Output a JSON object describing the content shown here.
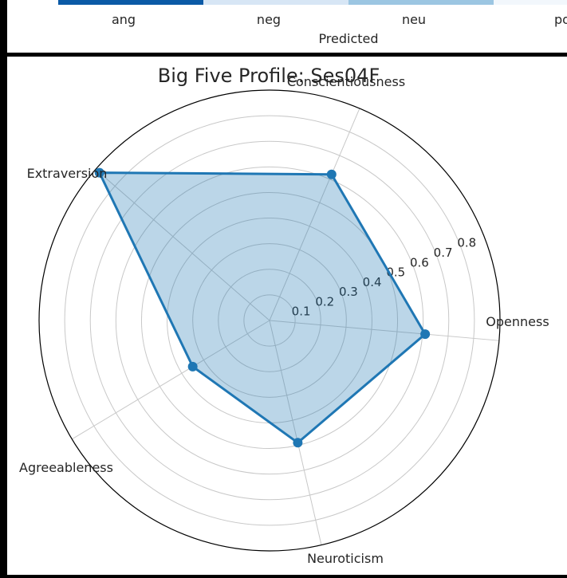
{
  "top_fragment": {
    "colorbar_segments": [
      "#0b5aa6",
      "#d7e6f5",
      "#9cc6e2",
      "#f2f7fc"
    ],
    "tick_labels": [
      "ang",
      "neg",
      "neu",
      "po"
    ],
    "axis_label": "Predicted"
  },
  "chart_data": {
    "type": "radar",
    "title": "Big Five Profile: Ses04F",
    "axes": [
      "Openness",
      "Conscientiousness",
      "Extraversion",
      "Agreeableness",
      "Neuroticism"
    ],
    "values": [
      0.61,
      0.62,
      0.88,
      0.35,
      0.49
    ],
    "radial_ticks": [
      "0.1",
      "0.2",
      "0.3",
      "0.4",
      "0.5",
      "0.6",
      "0.7",
      "0.8"
    ],
    "radial_range": [
      0,
      0.9
    ],
    "grid": true,
    "line_color": "#1f77b4",
    "fill_color": "#1f77b4",
    "fill_opacity": 0.3
  }
}
